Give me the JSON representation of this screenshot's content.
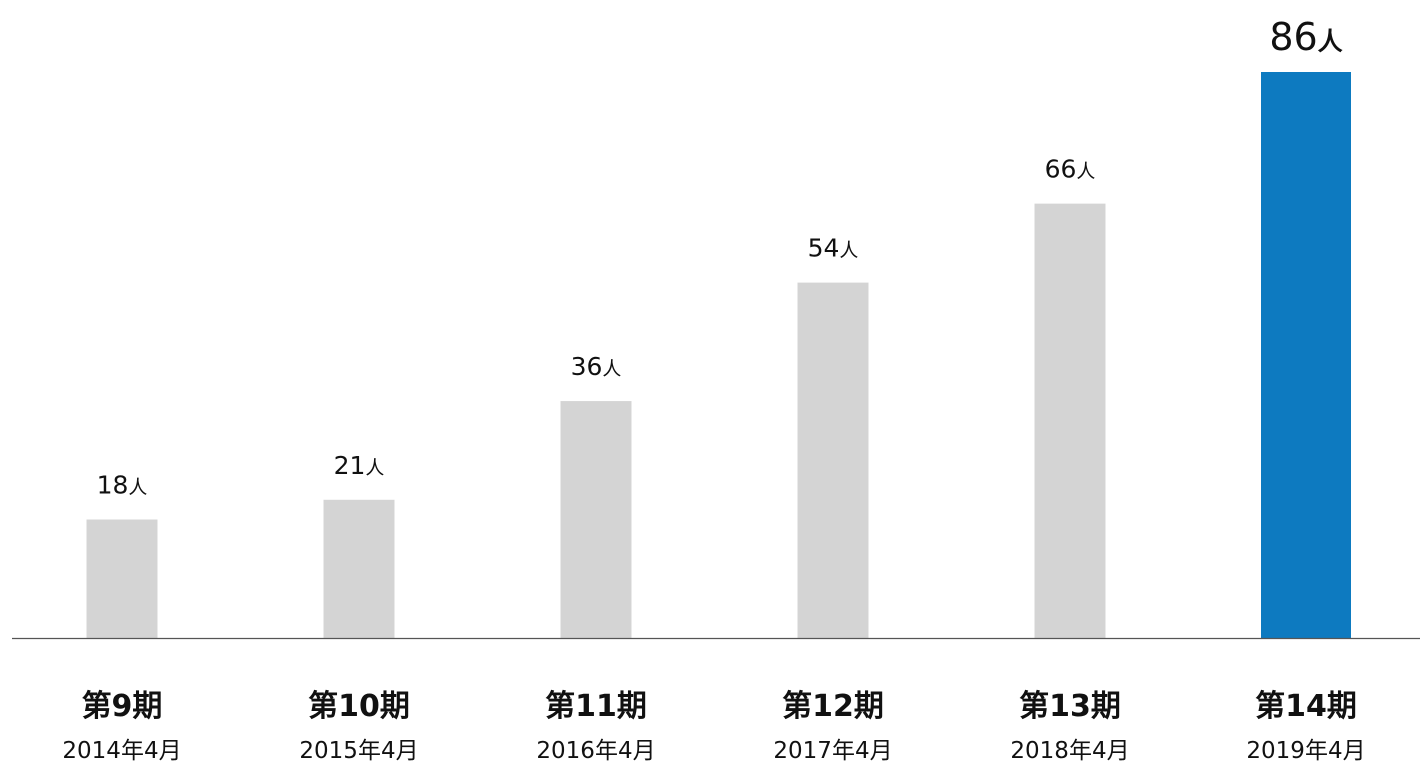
{
  "chart_data": {
    "type": "bar",
    "categories": [
      {
        "period": "第9期",
        "date": "2014年4月"
      },
      {
        "period": "第10期",
        "date": "2015年4月"
      },
      {
        "period": "第11期",
        "date": "2016年4月"
      },
      {
        "period": "第12期",
        "date": "2017年4月"
      },
      {
        "period": "第13期",
        "date": "2018年4月"
      },
      {
        "period": "第14期",
        "date": "2019年4月"
      }
    ],
    "values": [
      18,
      21,
      36,
      54,
      66,
      86
    ],
    "value_unit": "人",
    "highlight_index": 5,
    "ylim": [
      0,
      86
    ],
    "grid": false,
    "legend": "none"
  },
  "colors": {
    "bar_default": "#d4d4d4",
    "bar_highlight": "#0d7ac0",
    "axis_line": "#555555",
    "text": "#111111"
  }
}
